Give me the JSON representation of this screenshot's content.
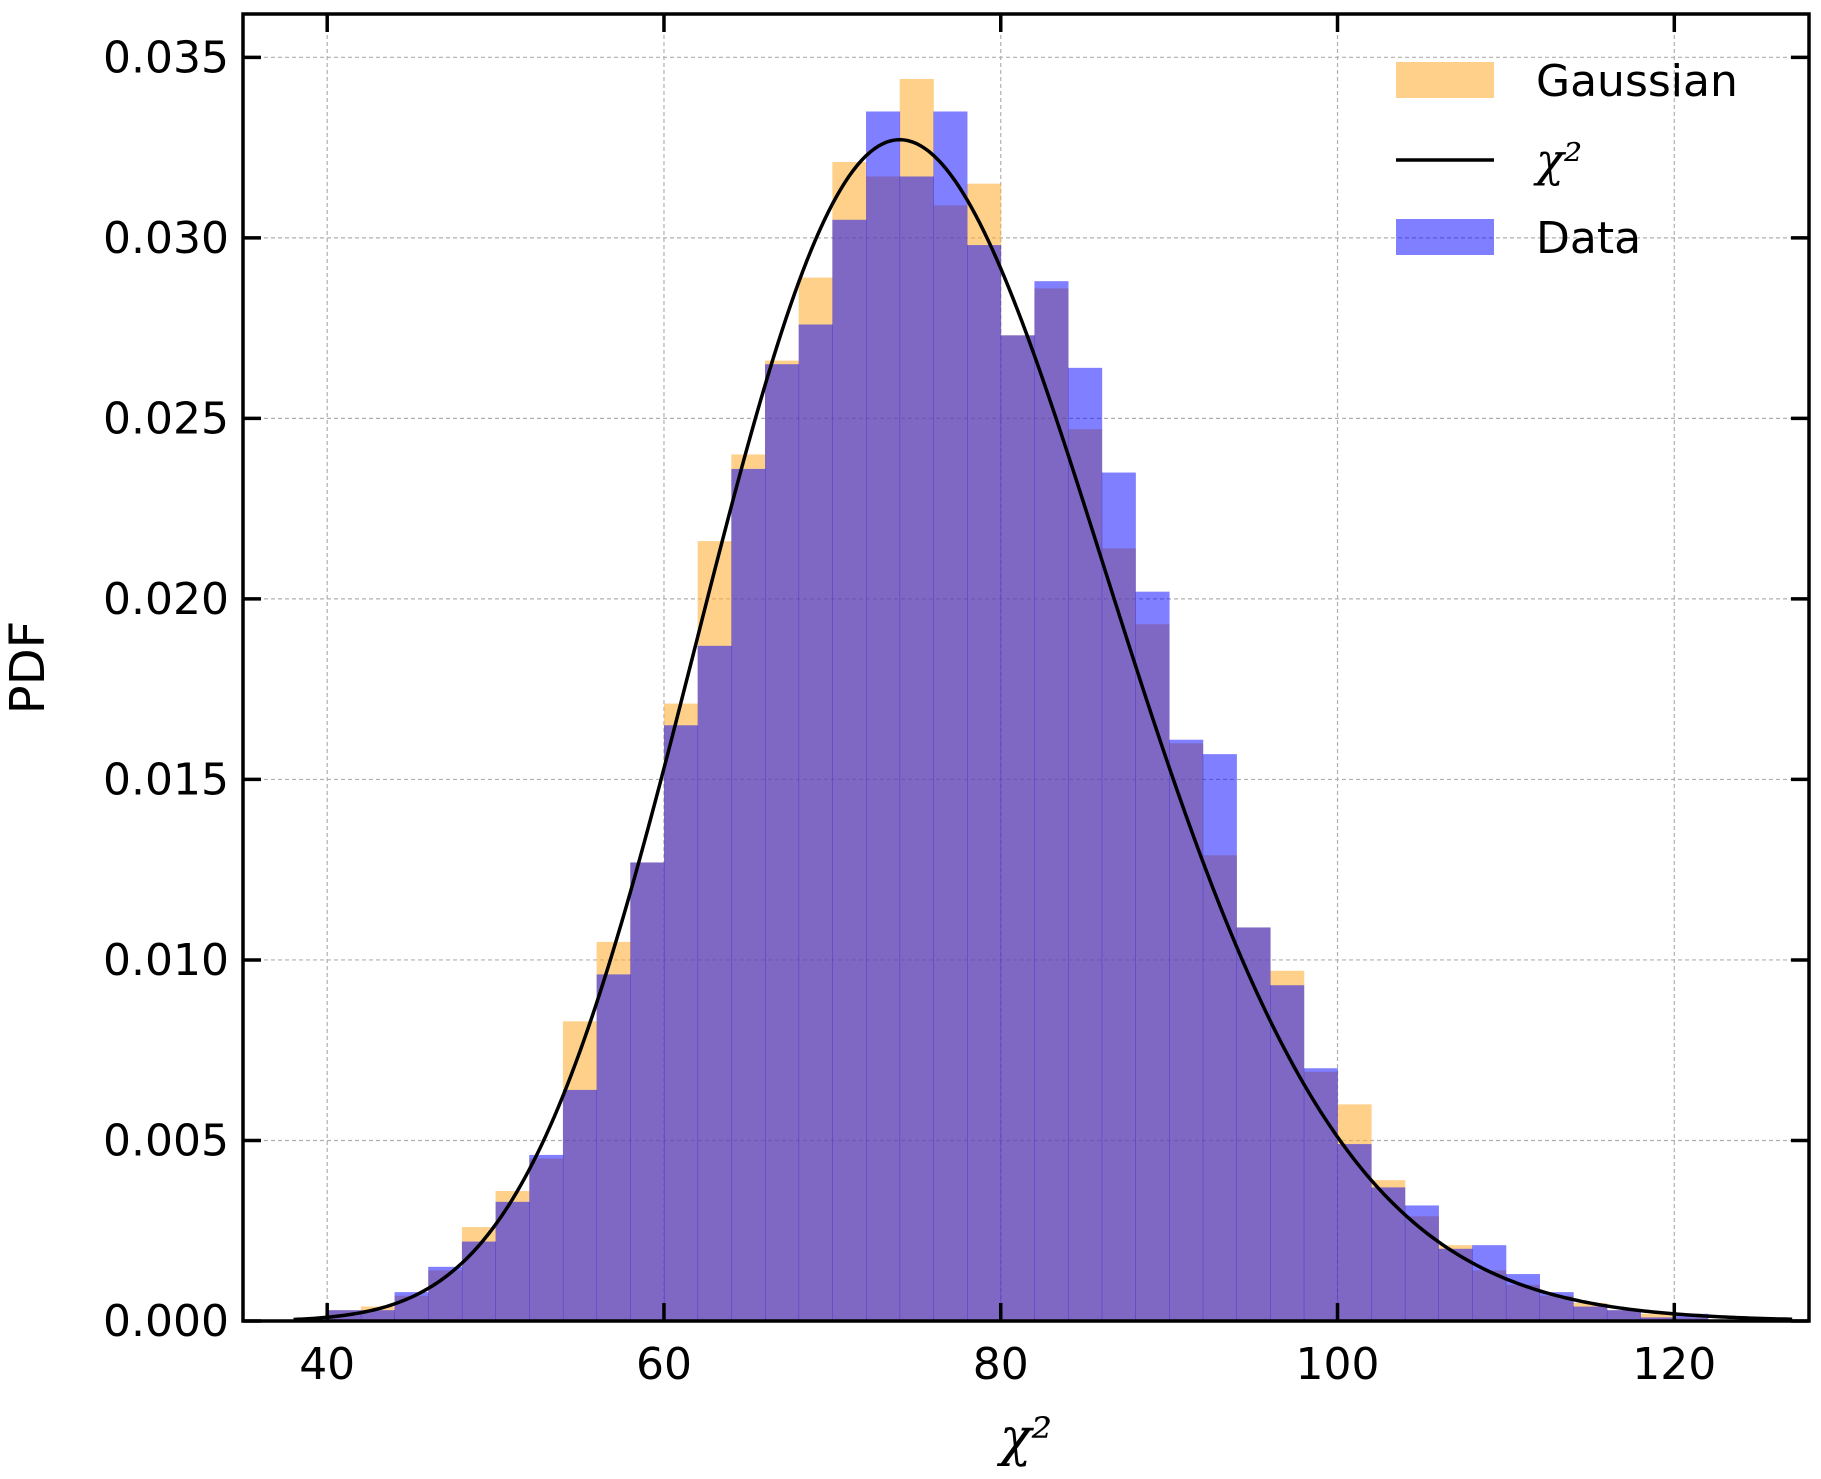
{
  "chart_data": {
    "type": "bar",
    "xlabel": "χ²",
    "ylabel": "PDF",
    "xlim": [
      35,
      128
    ],
    "ylim": [
      0,
      0.0362
    ],
    "xticks": [
      "40",
      "60",
      "80",
      "100",
      "120"
    ],
    "xtick_values": [
      40,
      60,
      80,
      100,
      120
    ],
    "yticks": [
      "0.000",
      "0.005",
      "0.010",
      "0.015",
      "0.020",
      "0.025",
      "0.030",
      "0.035"
    ],
    "ytick_values": [
      0,
      0.005,
      0.01,
      0.015,
      0.02,
      0.025,
      0.03,
      0.035
    ],
    "grid": true,
    "legend_position": "top-right",
    "bin_edges": [
      40,
      42,
      44,
      46,
      48,
      50,
      52,
      54,
      56,
      58,
      60,
      62,
      64,
      66,
      68,
      70,
      72,
      74,
      76,
      78,
      80,
      82,
      84,
      86,
      88,
      90,
      92,
      94,
      96,
      98,
      100,
      102,
      104,
      106,
      108,
      110,
      112,
      114,
      116,
      118,
      120,
      122
    ],
    "series": [
      {
        "name": "Gaussian",
        "kind": "histogram",
        "color": "#fdb13b",
        "opacity": 0.6,
        "values": [
          0.0003,
          0.0004,
          0.0007,
          0.0014,
          0.0026,
          0.0036,
          0.0045,
          0.0083,
          0.0105,
          0.0127,
          0.0171,
          0.0216,
          0.024,
          0.0266,
          0.0289,
          0.0321,
          0.0317,
          0.0344,
          0.0309,
          0.0315,
          0.0273,
          0.0286,
          0.0247,
          0.0214,
          0.0193,
          0.016,
          0.0129,
          0.0109,
          0.0097,
          0.0069,
          0.006,
          0.0039,
          0.0029,
          0.0021,
          0.0014,
          0.001,
          0.0007,
          0.0005,
          0.0003,
          0.0002,
          0.0001
        ]
      },
      {
        "name": "Data",
        "kind": "histogram",
        "color": "#0000ff",
        "opacity": 0.5,
        "values": [
          0.0003,
          0.0003,
          0.0008,
          0.0015,
          0.0022,
          0.0033,
          0.0046,
          0.0064,
          0.0096,
          0.0127,
          0.0165,
          0.0187,
          0.0236,
          0.0265,
          0.0276,
          0.0305,
          0.0335,
          0.0317,
          0.0335,
          0.0298,
          0.0273,
          0.0288,
          0.0264,
          0.0235,
          0.0202,
          0.0161,
          0.0157,
          0.0109,
          0.0093,
          0.007,
          0.0049,
          0.0037,
          0.0032,
          0.002,
          0.0021,
          0.0013,
          0.0008,
          0.0004,
          0.0003,
          0.0001,
          0.0002
        ]
      },
      {
        "name": "χ²",
        "kind": "curve",
        "color": "#000000",
        "dof": 76
      }
    ]
  }
}
